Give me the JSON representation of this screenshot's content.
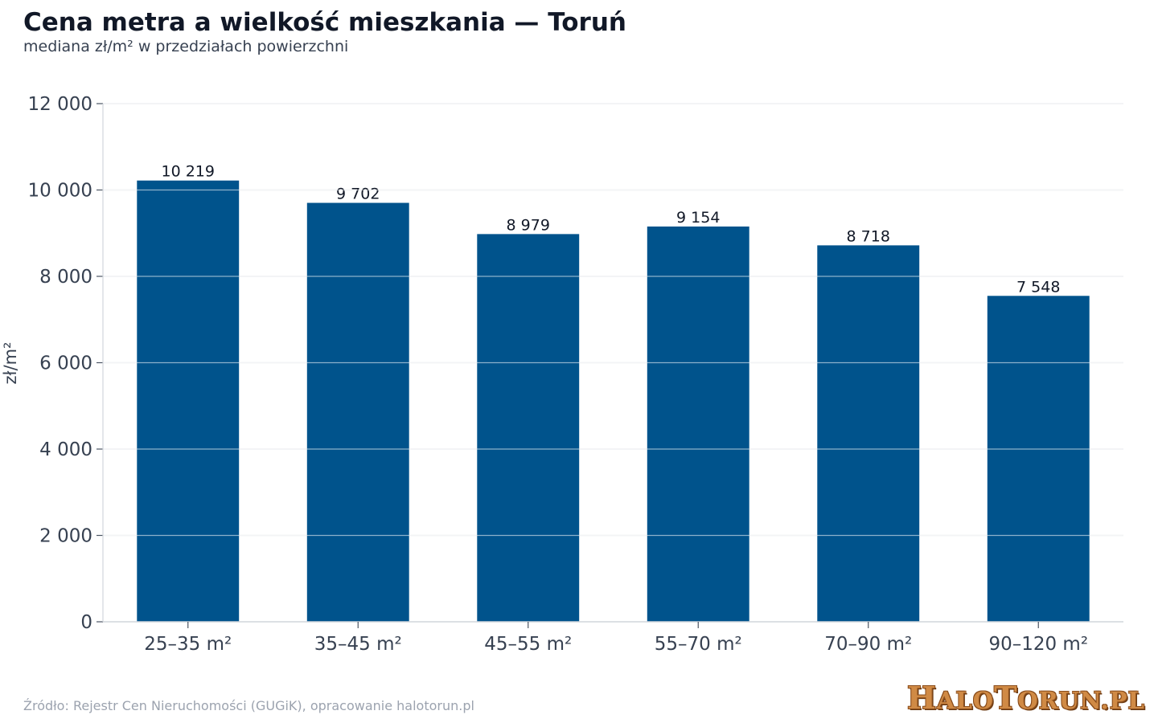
{
  "header": {
    "title": "Cena metra a wielkość mieszkania — Toruń",
    "subtitle": "mediana zł/m² w przedziałach powierzchni"
  },
  "footer": {
    "source": "Źródło: Rejestr Cen Nieruchomości (GUGiK), opracowanie halotorun.pl",
    "logo": "HaloToruń.pl"
  },
  "colors": {
    "bar": "#00538c",
    "grid": "#e5e7eb",
    "axis_text": "#374151",
    "label_text": "#111827",
    "logo": "#d08a45"
  },
  "chart_data": {
    "type": "bar",
    "categories": [
      "25–35 m²",
      "35–45 m²",
      "45–55 m²",
      "55–70 m²",
      "70–90 m²",
      "90–120 m²"
    ],
    "values": [
      10219,
      9702,
      8979,
      9154,
      8718,
      7548
    ],
    "value_labels": [
      "10 219",
      "9 702",
      "8 979",
      "9 154",
      "8 718",
      "7 548"
    ],
    "ylabel": "zł/m²",
    "xlabel": "",
    "ylim": [
      0,
      12000
    ],
    "yticks": [
      0,
      2000,
      4000,
      6000,
      8000,
      10000,
      12000
    ],
    "ytick_labels": [
      "0",
      "2 000",
      "4 000",
      "6 000",
      "8 000",
      "10 000",
      "12 000"
    ],
    "grid": true,
    "legend": false
  }
}
